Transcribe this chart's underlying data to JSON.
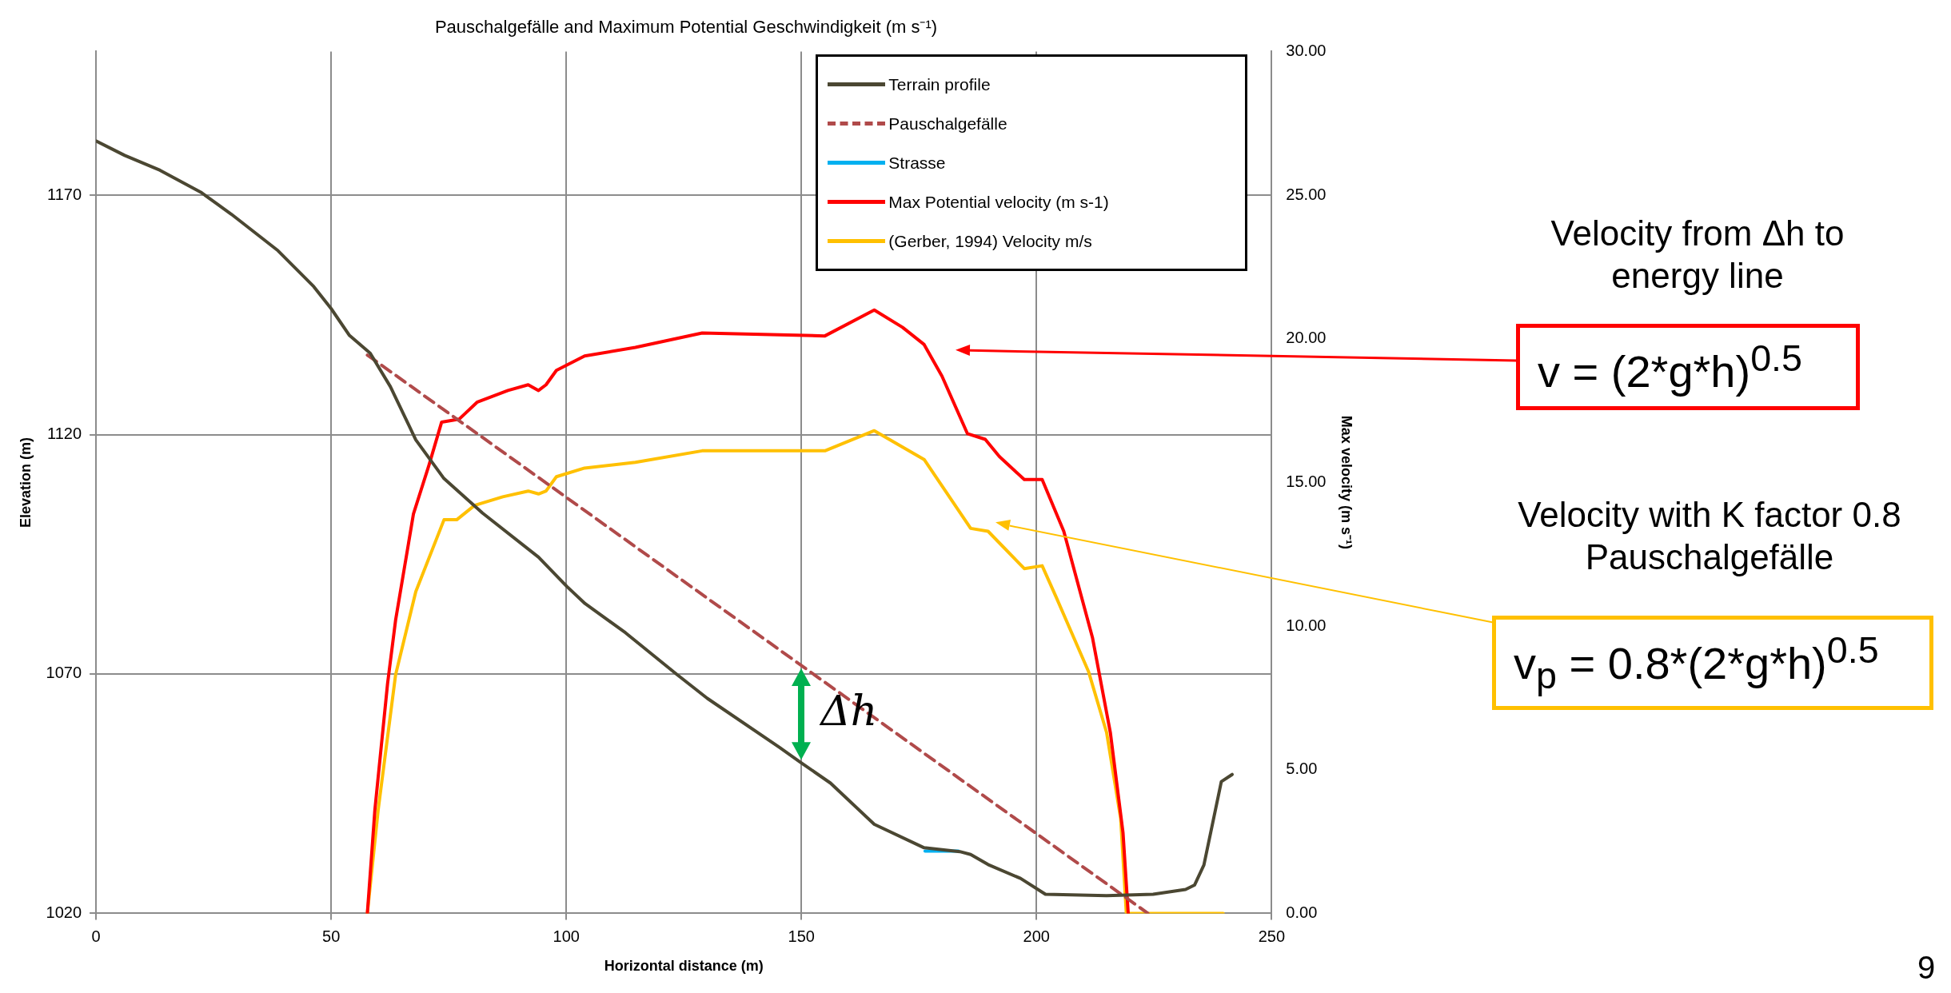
{
  "chart_data": {
    "type": "line",
    "title": "Pauschalgefälle and Maximum Potential Geschwindigkeit (m s⁻¹)",
    "xlabel": "Horizontal distance (m)",
    "ylabel": "Elevation (m)",
    "y2label": "Max velocity (m s⁻¹)",
    "xlim": [
      0,
      250
    ],
    "xticks": [
      0,
      50,
      100,
      150,
      200,
      250
    ],
    "ylim": [
      1020,
      1200
    ],
    "yticks": [
      1020,
      1070,
      1120,
      1170
    ],
    "y2lim": [
      0,
      30
    ],
    "y2ticks": [
      {
        "value": 0,
        "label": "0.00"
      },
      {
        "value": 5,
        "label": "5.00"
      },
      {
        "value": 10,
        "label": "10.00"
      },
      {
        "value": 15,
        "label": "15.00"
      },
      {
        "value": 20,
        "label": "20.00"
      },
      {
        "value": 25,
        "label": "25.00"
      },
      {
        "value": 30,
        "label": "30.00"
      }
    ],
    "grid": true,
    "legend": "top right",
    "marker": "none",
    "series": [
      {
        "name": "Terrain profile",
        "color": "#4b4732",
        "line_style": "solid",
        "x": [
          0,
          6.1,
          13.6,
          22.3,
          28.8,
          38.7,
          46.3,
          50,
          53.9,
          58.3,
          62.6,
          68,
          74,
          82.2,
          94.1,
          100.1,
          104,
          112.6,
          123.4,
          130,
          145.3,
          149.6,
          156.2,
          165.5,
          176.1,
          183.7,
          186,
          189.7,
          196.6,
          201.9,
          214.9,
          224.8,
          231.7,
          233.6,
          235.6,
          239.3,
          241.6
        ],
        "values": [
          1181.3,
          1178.3,
          1175.2,
          1170.6,
          1166,
          1158.4,
          1150.9,
          1146.3,
          1140.7,
          1137,
          1130,
          1118.9,
          1110.8,
          1103.6,
          1094.4,
          1088.3,
          1084.7,
          1078.6,
          1070,
          1064.9,
          1054.7,
          1051.7,
          1047.2,
          1038.6,
          1033.7,
          1032.9,
          1032.3,
          1030.2,
          1027.3,
          1024,
          1023.7,
          1024,
          1025,
          1025.9,
          1030.1,
          1047.5,
          1049
        ]
      },
      {
        "name": "Pauschalgefälle",
        "color": "#b04a4a",
        "line_style": "dashed",
        "x": [
          57.7,
          223.7
        ],
        "values": [
          1136.6,
          1020
        ]
      },
      {
        "name": "Strasse",
        "color": "#00b0f0",
        "line_style": "solid",
        "x": [
          176.3,
          183.4
        ],
        "values": [
          1033,
          1033
        ]
      },
      {
        "name": "Max Potential velocity (m s-1)",
        "color": "#ff0000",
        "line_style": "solid",
        "axis": "y2",
        "x": [
          57.7,
          59.3,
          62,
          63.7,
          67.5,
          70.8,
          73.5,
          77.2,
          81.1,
          87.6,
          91.9,
          94.1,
          95.7,
          97.9,
          103.9,
          114.7,
          128.9,
          155,
          165.5,
          171.5,
          176.1,
          179.9,
          185.3,
          189.1,
          192.1,
          197.4,
          201.2,
          205.8,
          211.9,
          215.7,
          218.4,
          219.5
        ],
        "values": [
          0,
          3.6,
          8,
          10.2,
          13.9,
          15.6,
          17.1,
          17.2,
          17.8,
          18.2,
          18.4,
          18.2,
          18.4,
          18.9,
          19.4,
          19.7,
          20.2,
          20.1,
          21,
          20.4,
          19.8,
          18.7,
          16.7,
          16.5,
          15.9,
          15.1,
          15.1,
          13.3,
          9.6,
          6.3,
          2.8,
          0
        ]
      },
      {
        "name": "(Gerber, 1994) Velocity m/s",
        "color": "#ffc000",
        "line_style": "solid",
        "axis": "y2",
        "x": [
          57.7,
          60,
          63.7,
          68,
          74,
          76.7,
          80.5,
          86.5,
          91.9,
          94.1,
          95.7,
          97.9,
          103.9,
          114.7,
          128.9,
          155,
          165.5,
          176.1,
          186,
          189.7,
          197.4,
          201.2,
          204.2,
          211.1,
          214.9,
          217.9,
          219.1,
          239.7
        ],
        "values": [
          0,
          3.6,
          8.3,
          11.2,
          13.7,
          13.7,
          14.2,
          14.5,
          14.7,
          14.6,
          14.7,
          15.2,
          15.5,
          15.7,
          16.1,
          16.1,
          16.8,
          15.8,
          13.4,
          13.3,
          12,
          12.1,
          11,
          8.4,
          6.3,
          3.3,
          0,
          0
        ]
      }
    ],
    "annotations": [
      "Velocity from Δh to energy line",
      "v = (2*g*h)$^{0.5}$",
      "Velocity with K factor 0.8 Pauschalgefälle",
      "v$_{p}$ = 0.8*(2*g*h)$^{0.5}$",
      "Δh",
      "9"
    ]
  }
}
